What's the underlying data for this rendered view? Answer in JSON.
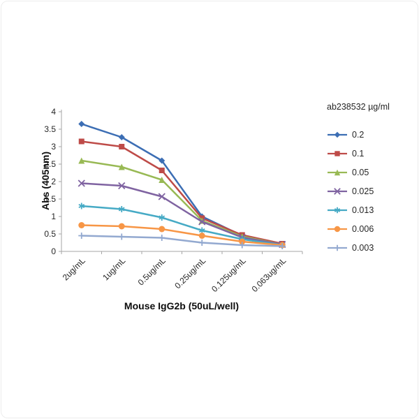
{
  "chart_data": {
    "type": "line",
    "title": "",
    "xlabel": "Mouse IgG2b (50uL/well)",
    "ylabel": "Abs (405nm)",
    "ylim": [
      0,
      4
    ],
    "ytick_step": 0.5,
    "grid": false,
    "legend_position": "right",
    "legend_title": "ab238532 µg/ml",
    "categories": [
      "2ug/mL",
      "1ug/mL",
      "0.5ug/mL",
      "0.25ug/mL",
      "0.125ug/mL",
      "0.063ug/mL"
    ],
    "series": [
      {
        "name": "0.2",
        "color": "#3C6EB4",
        "marker": "diamond",
        "values": [
          3.65,
          3.27,
          2.6,
          1.0,
          0.45,
          0.2
        ]
      },
      {
        "name": "0.1",
        "color": "#BE4B48",
        "marker": "square",
        "values": [
          3.15,
          3.0,
          2.32,
          0.95,
          0.47,
          0.22
        ]
      },
      {
        "name": "0.05",
        "color": "#98B954",
        "marker": "triangle",
        "values": [
          2.6,
          2.42,
          2.05,
          0.88,
          0.43,
          0.2
        ]
      },
      {
        "name": "0.025",
        "color": "#7F63A1",
        "marker": "x",
        "values": [
          1.95,
          1.88,
          1.57,
          0.85,
          0.4,
          0.2
        ]
      },
      {
        "name": "0.013",
        "color": "#46AAC5",
        "marker": "asterisk",
        "values": [
          1.3,
          1.21,
          0.97,
          0.6,
          0.35,
          0.18
        ]
      },
      {
        "name": "0.006",
        "color": "#F79646",
        "marker": "circle",
        "values": [
          0.75,
          0.72,
          0.64,
          0.45,
          0.28,
          0.18
        ]
      },
      {
        "name": "0.003",
        "color": "#93A9D0",
        "marker": "plus",
        "values": [
          0.45,
          0.42,
          0.39,
          0.25,
          0.18,
          0.15
        ]
      }
    ]
  }
}
